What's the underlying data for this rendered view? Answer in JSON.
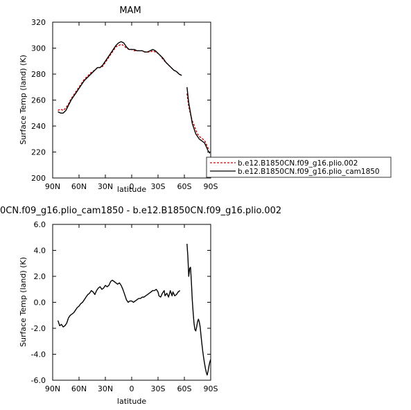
{
  "chart_data": [
    {
      "type": "line",
      "title": "MAM",
      "xlabel": "latitude",
      "ylabel": "Surface Temp (land) (K)",
      "xlim": [
        90,
        -90
      ],
      "ylim": [
        200,
        320
      ],
      "xticks": [
        90,
        60,
        30,
        0,
        -30,
        -60,
        -90
      ],
      "xtick_labels": [
        "90N",
        "60N",
        "30N",
        "0",
        "30S",
        "60S",
        "90S"
      ],
      "yticks": [
        200,
        220,
        240,
        260,
        280,
        300,
        320
      ],
      "ytick_labels": [
        "200",
        "220",
        "240",
        "260",
        "280",
        "300",
        "320"
      ],
      "legend": "right",
      "series": [
        {
          "name": "b.e12.B1850CN.f09_g16.plio.002",
          "color": "#cc0000",
          "dash": true,
          "segments": [
            [
              [
                84,
                252
              ],
              [
                81,
                253
              ],
              [
                78,
                252
              ],
              [
                75,
                254
              ],
              [
                72,
                257
              ],
              [
                69,
                261
              ],
              [
                66,
                264
              ],
              [
                63,
                267
              ],
              [
                60,
                270
              ],
              [
                57,
                273
              ],
              [
                54,
                276
              ],
              [
                51,
                278
              ],
              [
                48,
                280
              ],
              [
                45,
                282
              ],
              [
                42,
                283
              ],
              [
                39,
                285
              ],
              [
                36,
                285
              ],
              [
                33,
                286
              ],
              [
                30,
                289
              ],
              [
                27,
                292
              ],
              [
                24,
                295
              ],
              [
                21,
                298
              ],
              [
                18,
                301
              ],
              [
                15,
                302
              ],
              [
                12,
                303
              ],
              [
                9,
                302
              ],
              [
                6,
                300
              ],
              [
                3,
                299
              ],
              [
                0,
                299
              ],
              [
                -3,
                298
              ],
              [
                -6,
                298
              ],
              [
                -9,
                298
              ],
              [
                -12,
                298
              ],
              [
                -15,
                297
              ],
              [
                -18,
                297
              ],
              [
                -21,
                297
              ],
              [
                -24,
                298
              ],
              [
                -27,
                297
              ],
              [
                -30,
                296
              ],
              [
                -33,
                294
              ],
              [
                -36,
                291
              ],
              [
                -39,
                289
              ],
              [
                -42,
                287
              ],
              [
                -45,
                285
              ],
              [
                -48,
                283
              ],
              [
                -51,
                282
              ],
              [
                -54,
                280
              ],
              [
                -57,
                279
              ]
            ],
            [
              [
                -63,
                265
              ],
              [
                -65,
                255
              ],
              [
                -67,
                249
              ],
              [
                -69,
                244
              ],
              [
                -71,
                241
              ],
              [
                -73,
                237
              ],
              [
                -75,
                234
              ],
              [
                -77,
                232
              ],
              [
                -79,
                231
              ],
              [
                -81,
                230
              ],
              [
                -83,
                229
              ],
              [
                -85,
                226
              ],
              [
                -87,
                223
              ],
              [
                -89,
                222
              ]
            ]
          ]
        },
        {
          "name": "b.e12.B1850CN.f09_g16.plio_cam1850",
          "color": "#000000",
          "dash": false,
          "segments": [
            [
              [
                84,
                251
              ],
              [
                81,
                250
              ],
              [
                78,
                250
              ],
              [
                75,
                252
              ],
              [
                72,
                256
              ],
              [
                69,
                260
              ],
              [
                66,
                263
              ],
              [
                63,
                266
              ],
              [
                60,
                269
              ],
              [
                57,
                272
              ],
              [
                54,
                275
              ],
              [
                51,
                277
              ],
              [
                48,
                279
              ],
              [
                45,
                281
              ],
              [
                42,
                283
              ],
              [
                39,
                285
              ],
              [
                36,
                285
              ],
              [
                33,
                287
              ],
              [
                30,
                290
              ],
              [
                27,
                293
              ],
              [
                24,
                296
              ],
              [
                21,
                299
              ],
              [
                18,
                302
              ],
              [
                15,
                304
              ],
              [
                12,
                305
              ],
              [
                9,
                304
              ],
              [
                6,
                301
              ],
              [
                3,
                299
              ],
              [
                0,
                299
              ],
              [
                -3,
                299
              ],
              [
                -6,
                298
              ],
              [
                -9,
                298
              ],
              [
                -12,
                298
              ],
              [
                -15,
                297
              ],
              [
                -18,
                297
              ],
              [
                -21,
                298
              ],
              [
                -24,
                299
              ],
              [
                -27,
                298
              ],
              [
                -30,
                296
              ],
              [
                -33,
                294
              ],
              [
                -36,
                292
              ],
              [
                -39,
                289
              ],
              [
                -42,
                287
              ],
              [
                -45,
                285
              ],
              [
                -48,
                283
              ],
              [
                -51,
                282
              ],
              [
                -54,
                280
              ],
              [
                -57,
                279
              ]
            ],
            [
              [
                -63,
                270
              ],
              [
                -65,
                258
              ],
              [
                -67,
                250
              ],
              [
                -69,
                242
              ],
              [
                -71,
                238
              ],
              [
                -73,
                234
              ],
              [
                -75,
                232
              ],
              [
                -77,
                230
              ],
              [
                -79,
                229
              ],
              [
                -81,
                228
              ],
              [
                -83,
                227
              ],
              [
                -85,
                224
              ],
              [
                -87,
                221
              ],
              [
                -89,
                219
              ]
            ]
          ]
        }
      ]
    },
    {
      "type": "line",
      "title": "0CN.f09_g16.plio_cam1850 - b.e12.B1850CN.f09_g16.plio.002",
      "xlabel": "latitude",
      "ylabel": "Surface Temp (land) (K)",
      "xlim": [
        90,
        -90
      ],
      "ylim": [
        -6,
        6
      ],
      "xticks": [
        90,
        60,
        30,
        0,
        -30,
        -60,
        -90
      ],
      "xtick_labels": [
        "90N",
        "60N",
        "30N",
        "0",
        "30S",
        "60S",
        "90S"
      ],
      "yticks": [
        -6,
        -4,
        -2,
        0,
        2,
        4,
        6
      ],
      "ytick_labels": [
        "-6.0",
        "-4.0",
        "-2.0",
        "0.0",
        "2.0",
        "4.0",
        "6.0"
      ],
      "series": [
        {
          "color": "#000000",
          "dash": false,
          "segments": [
            [
              [
                84,
                -1.4
              ],
              [
                82,
                -1.8
              ],
              [
                80,
                -1.7
              ],
              [
                78,
                -1.9
              ],
              [
                76,
                -1.8
              ],
              [
                74,
                -1.6
              ],
              [
                72,
                -1.2
              ],
              [
                70,
                -1.0
              ],
              [
                68,
                -0.9
              ],
              [
                66,
                -0.8
              ],
              [
                64,
                -0.6
              ],
              [
                62,
                -0.4
              ],
              [
                60,
                -0.3
              ],
              [
                58,
                -0.1
              ],
              [
                56,
                0.0
              ],
              [
                54,
                0.2
              ],
              [
                52,
                0.4
              ],
              [
                50,
                0.6
              ],
              [
                48,
                0.7
              ],
              [
                46,
                0.9
              ],
              [
                44,
                0.8
              ],
              [
                42,
                0.6
              ],
              [
                40,
                0.9
              ],
              [
                38,
                1.1
              ],
              [
                36,
                1.2
              ],
              [
                34,
                1.0
              ],
              [
                32,
                1.1
              ],
              [
                30,
                1.3
              ],
              [
                28,
                1.2
              ],
              [
                26,
                1.3
              ],
              [
                24,
                1.6
              ],
              [
                22,
                1.7
              ],
              [
                20,
                1.6
              ],
              [
                18,
                1.5
              ],
              [
                16,
                1.4
              ],
              [
                14,
                1.5
              ],
              [
                12,
                1.3
              ],
              [
                10,
                1.0
              ],
              [
                8,
                0.6
              ],
              [
                6,
                0.2
              ],
              [
                4,
                0.0
              ],
              [
                2,
                0.1
              ],
              [
                0,
                0.1
              ],
              [
                -2,
                0.0
              ],
              [
                -4,
                0.1
              ],
              [
                -6,
                0.2
              ],
              [
                -8,
                0.3
              ],
              [
                -10,
                0.3
              ],
              [
                -12,
                0.4
              ],
              [
                -14,
                0.4
              ],
              [
                -16,
                0.5
              ],
              [
                -18,
                0.6
              ],
              [
                -20,
                0.7
              ],
              [
                -22,
                0.8
              ],
              [
                -24,
                0.9
              ],
              [
                -26,
                0.9
              ],
              [
                -28,
                1.0
              ],
              [
                -30,
                0.8
              ],
              [
                -31,
                0.5
              ],
              [
                -33,
                0.4
              ],
              [
                -35,
                0.7
              ],
              [
                -37,
                0.9
              ],
              [
                -38,
                0.5
              ],
              [
                -40,
                0.7
              ],
              [
                -42,
                0.4
              ],
              [
                -44,
                0.9
              ],
              [
                -46,
                0.5
              ],
              [
                -47,
                0.8
              ],
              [
                -49,
                0.5
              ],
              [
                -51,
                0.6
              ],
              [
                -53,
                0.8
              ],
              [
                -55,
                0.9
              ]
            ],
            [
              [
                -63,
                4.5
              ],
              [
                -64,
                3.5
              ],
              [
                -65,
                2.0
              ],
              [
                -66,
                2.6
              ],
              [
                -67,
                2.7
              ],
              [
                -68,
                1.6
              ],
              [
                -69,
                0.2
              ],
              [
                -70,
                -0.8
              ],
              [
                -71,
                -1.6
              ],
              [
                -72,
                -2.1
              ],
              [
                -73,
                -2.2
              ],
              [
                -74,
                -1.9
              ],
              [
                -75,
                -1.5
              ],
              [
                -76,
                -1.3
              ],
              [
                -77,
                -1.5
              ],
              [
                -78,
                -1.9
              ],
              [
                -79,
                -2.6
              ],
              [
                -80,
                -3.2
              ],
              [
                -81,
                -3.8
              ],
              [
                -82,
                -4.3
              ],
              [
                -83,
                -4.7
              ],
              [
                -84,
                -5.1
              ],
              [
                -85,
                -5.4
              ],
              [
                -86,
                -5.6
              ],
              [
                -87,
                -5.3
              ],
              [
                -88,
                -4.9
              ],
              [
                -89,
                -4.6
              ],
              [
                -90,
                -4.4
              ]
            ]
          ]
        }
      ]
    }
  ]
}
